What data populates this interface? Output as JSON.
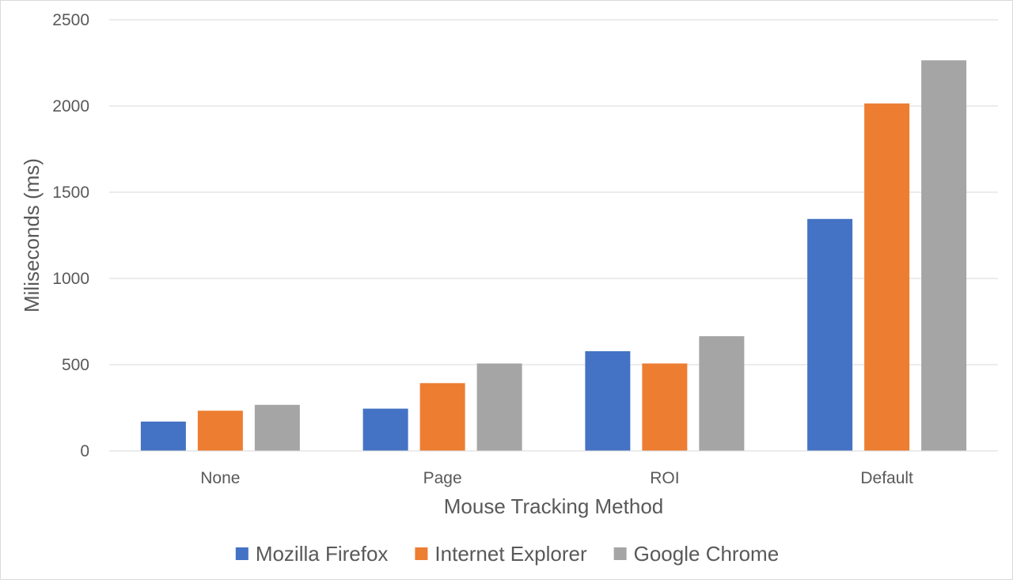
{
  "chart_data": {
    "type": "bar",
    "title": "",
    "xlabel": "Mouse Tracking Method",
    "ylabel": "Miliseconds (ms)",
    "categories": [
      "None",
      "Page",
      "ROI",
      "Default"
    ],
    "series": [
      {
        "name": "Mozilla Firefox",
        "color": "#4472c4",
        "values": [
          170,
          245,
          578,
          1345
        ]
      },
      {
        "name": "Internet Explorer",
        "color": "#ed7d31",
        "values": [
          233,
          393,
          507,
          2015
        ]
      },
      {
        "name": "Google Chrome",
        "color": "#a5a5a5",
        "values": [
          267,
          507,
          665,
          2265
        ]
      }
    ],
    "ylim": [
      0,
      2500
    ],
    "yticks": [
      0,
      500,
      1000,
      1500,
      2000,
      2500
    ],
    "grid": true,
    "gridColor": "#d9d9d9",
    "legend_position": "bottom"
  }
}
